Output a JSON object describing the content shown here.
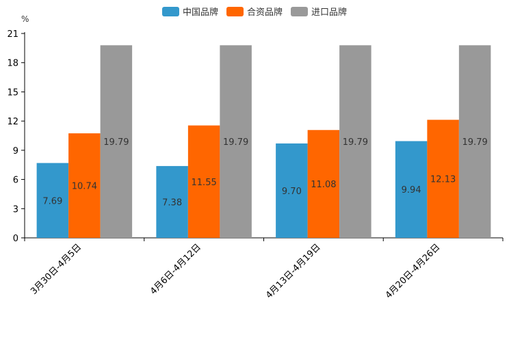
{
  "chart_data": {
    "type": "bar",
    "unit": "%",
    "categories": [
      "3月30日-4月5日",
      "4月6日-4月12日",
      "4月13日-4月19日",
      "4月20日-4月26日"
    ],
    "series": [
      {
        "name": "中国品牌",
        "color": "#3398CC",
        "values": [
          7.69,
          7.38,
          9.7,
          9.94
        ],
        "labels": [
          "7.69",
          "7.38",
          "9.70",
          "9.94"
        ]
      },
      {
        "name": "合资品牌",
        "color": "#FF6600",
        "values": [
          10.74,
          11.55,
          11.08,
          12.13
        ],
        "labels": [
          "10.74",
          "11.55",
          "11.08",
          "12.13"
        ]
      },
      {
        "name": "进口品牌",
        "color": "#999999",
        "values": [
          19.79,
          19.79,
          19.79,
          19.79
        ],
        "labels": [
          "19.79",
          "19.79",
          "19.79",
          "19.79"
        ]
      }
    ],
    "ylim": [
      0,
      21
    ],
    "yticks": [
      0,
      3,
      6,
      9,
      12,
      15,
      18,
      21
    ],
    "legend_position": "top-center"
  }
}
